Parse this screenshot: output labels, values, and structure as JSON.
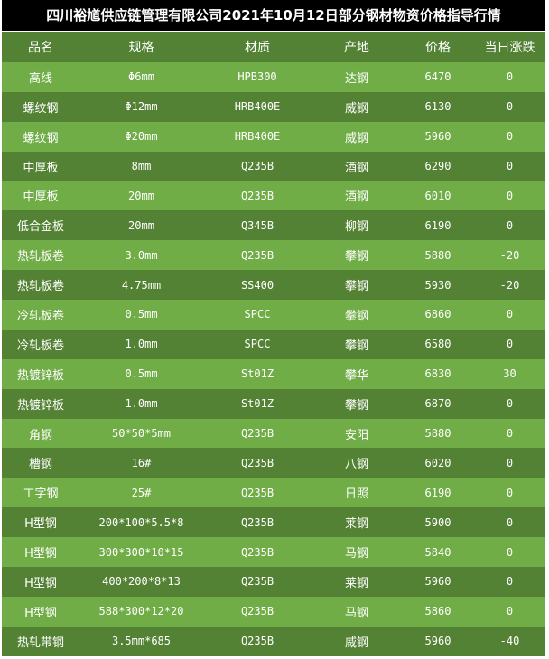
{
  "title": "四川裕馗供应链管理有限公司2021年10月12日部分钢材物资价格指导行情",
  "colors": {
    "title_bg": "#000000",
    "header_bg": "#548235",
    "row_light": "#70AD47",
    "row_dark": "#548235",
    "text": "#FFFFFF"
  },
  "headers": [
    "品名",
    "规格",
    "材质",
    "产地",
    "价格",
    "当日涨跌"
  ],
  "rows": [
    [
      "高线",
      "Φ6mm",
      "HPB300",
      "达钢",
      "6470",
      "0"
    ],
    [
      "螺纹钢",
      "Φ12mm",
      "HRB400E",
      "威钢",
      "6130",
      "0"
    ],
    [
      "螺纹钢",
      "Φ20mm",
      "HRB400E",
      "威钢",
      "5960",
      "0"
    ],
    [
      "中厚板",
      "8mm",
      "Q235B",
      "酒钢",
      "6290",
      "0"
    ],
    [
      "中厚板",
      "20mm",
      "Q235B",
      "酒钢",
      "6010",
      "0"
    ],
    [
      "低合金板",
      "20mm",
      "Q345B",
      "柳钢",
      "6190",
      "0"
    ],
    [
      "热轧板卷",
      "3.0mm",
      "Q235B",
      "攀钢",
      "5880",
      "-20"
    ],
    [
      "热轧板卷",
      "4.75mm",
      "SS400",
      "攀钢",
      "5930",
      "-20"
    ],
    [
      "冷轧板卷",
      "0.5mm",
      "SPCC",
      "攀钢",
      "6860",
      "0"
    ],
    [
      "冷轧板卷",
      "1.0mm",
      "SPCC",
      "攀钢",
      "6580",
      "0"
    ],
    [
      "热镀锌板",
      "0.5mm",
      "St01Z",
      "攀华",
      "6830",
      "30"
    ],
    [
      "热镀锌板",
      "1.0mm",
      "St01Z",
      "攀钢",
      "6870",
      "0"
    ],
    [
      "角钢",
      "50*50*5mm",
      "Q235B",
      "安阳",
      "5880",
      "0"
    ],
    [
      "槽钢",
      "16#",
      "Q235B",
      "八钢",
      "6020",
      "0"
    ],
    [
      "工字钢",
      "25#",
      "Q235B",
      "日照",
      "6190",
      "0"
    ],
    [
      "H型钢",
      "200*100*5.5*8",
      "Q235B",
      "莱钢",
      "5900",
      "0"
    ],
    [
      "H型钢",
      "300*300*10*15",
      "Q235B",
      "马钢",
      "5840",
      "0"
    ],
    [
      "H型钢",
      "400*200*8*13",
      "Q235B",
      "莱钢",
      "5960",
      "0"
    ],
    [
      "H型钢",
      "588*300*12*20",
      "Q235B",
      "马钢",
      "5860",
      "0"
    ],
    [
      "热轧带钢",
      "3.5mm*685",
      "Q235B",
      "威钢",
      "5960",
      "-40"
    ]
  ]
}
